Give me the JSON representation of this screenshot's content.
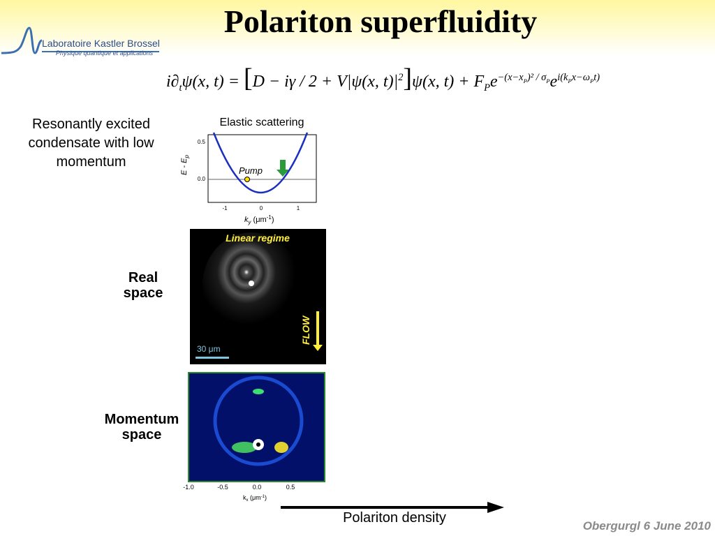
{
  "header": {
    "title": "Polariton superfluidity",
    "logo": {
      "name": "Laboratoire Kastler Brossel",
      "tagline": "Physique quantique et applications"
    }
  },
  "equation": [
    "i∂",
    "t",
    "ψ(x, t) = ",
    "[",
    "D − iγ / 2 + V",
    "|ψ(x, t)|",
    "2",
    "]",
    "ψ(x, t) + F",
    "P",
    "e",
    "−(x−x",
    "P",
    ")² / σ",
    "P",
    "e",
    "i(k",
    "P",
    "x−ω",
    "P",
    "t)"
  ],
  "intro": "Resonantly excited condensate with low momentum",
  "inset": {
    "title": "Elastic scattering",
    "pump": "Pump",
    "ylabel": [
      "E - E",
      "p"
    ],
    "xlabel": [
      "k",
      "y",
      " (μm",
      "-1",
      ")"
    ],
    "yticks": [
      "0.5",
      "0.0"
    ],
    "xticks": [
      "-1",
      "0",
      "1"
    ]
  },
  "real_space": {
    "label": "Real space",
    "overlay": "Linear regime",
    "flow": "FLOW",
    "scale": "30 μm"
  },
  "momentum_space": {
    "label": "Momentum space",
    "xticks": [
      "-1.0",
      "-0.5",
      "0.0",
      "0.5"
    ],
    "xlabel": [
      "k",
      "x",
      "  (μm",
      "-1",
      ")"
    ]
  },
  "arrow_label": "Polariton density",
  "footer": "Obergurgl 6 June 2010"
}
